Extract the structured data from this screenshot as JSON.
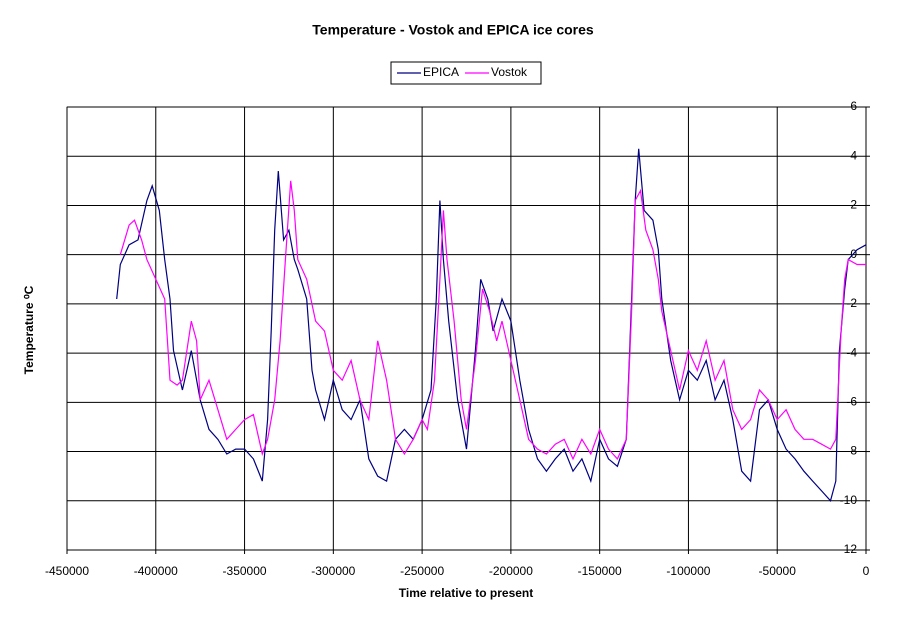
{
  "chart_data": {
    "type": "line",
    "title": "Temperature - Vostok and EPICA ice cores",
    "x_label": "Time relative to present",
    "y_label": "Temperature ⁰C",
    "xlim": [
      -450000,
      0
    ],
    "xticks": [
      -450000,
      -400000,
      -350000,
      -300000,
      -250000,
      -200000,
      -150000,
      -100000,
      -50000,
      0
    ],
    "ylim": [
      -12,
      6
    ],
    "yticks": [
      6,
      4,
      2,
      0,
      -2,
      -4,
      -6,
      -8,
      -10,
      -12
    ],
    "grid": true,
    "legend": "top",
    "series": [
      {
        "name": "EPICA",
        "color": "#000080",
        "x": [
          -422000,
          -420000,
          -415000,
          -410000,
          -405000,
          -402000,
          -398000,
          -395000,
          -392000,
          -390000,
          -385000,
          -380000,
          -375000,
          -370000,
          -365000,
          -360000,
          -355000,
          -350000,
          -345000,
          -340000,
          -337000,
          -335000,
          -333000,
          -331000,
          -328000,
          -325000,
          -322000,
          -320000,
          -315000,
          -312000,
          -310000,
          -305000,
          -300000,
          -295000,
          -290000,
          -285000,
          -280000,
          -275000,
          -270000,
          -265000,
          -260000,
          -255000,
          -250000,
          -245000,
          -242000,
          -240000,
          -238000,
          -235000,
          -230000,
          -225000,
          -220000,
          -217000,
          -213000,
          -210000,
          -205000,
          -200000,
          -195000,
          -190000,
          -185000,
          -180000,
          -175000,
          -170000,
          -165000,
          -160000,
          -155000,
          -150000,
          -145000,
          -140000,
          -135000,
          -132000,
          -130000,
          -128000,
          -125000,
          -120000,
          -117000,
          -115000,
          -110000,
          -105000,
          -100000,
          -95000,
          -90000,
          -85000,
          -80000,
          -75000,
          -70000,
          -65000,
          -60000,
          -55000,
          -50000,
          -45000,
          -40000,
          -35000,
          -30000,
          -25000,
          -20000,
          -17000,
          -15000,
          -12000,
          -10000,
          -5000,
          0
        ],
        "values": [
          -1.8,
          -0.4,
          0.4,
          0.6,
          2.2,
          2.8,
          1.8,
          -0.2,
          -1.8,
          -3.9,
          -5.5,
          -3.9,
          -5.9,
          -7.1,
          -7.5,
          -8.1,
          -7.9,
          -7.9,
          -8.3,
          -9.2,
          -6.7,
          -3.1,
          1.0,
          3.4,
          0.6,
          1.0,
          -0.2,
          -0.6,
          -1.8,
          -4.7,
          -5.5,
          -6.7,
          -5.1,
          -6.3,
          -6.7,
          -5.9,
          -8.3,
          -9.0,
          -9.2,
          -7.5,
          -7.1,
          -7.5,
          -6.7,
          -5.5,
          -1.8,
          2.2,
          -0.2,
          -2.7,
          -5.9,
          -7.9,
          -3.9,
          -1.0,
          -1.8,
          -3.1,
          -1.8,
          -2.7,
          -5.1,
          -7.1,
          -8.3,
          -8.8,
          -8.3,
          -7.9,
          -8.8,
          -8.3,
          -9.2,
          -7.5,
          -8.3,
          -8.6,
          -7.5,
          -1.8,
          2.2,
          4.3,
          1.8,
          1.4,
          0.2,
          -1.8,
          -4.3,
          -5.9,
          -4.7,
          -5.1,
          -4.3,
          -5.9,
          -5.1,
          -6.7,
          -8.8,
          -9.2,
          -6.3,
          -5.9,
          -7.1,
          -7.9,
          -8.3,
          -8.8,
          -9.2,
          -9.6,
          -10.0,
          -9.2,
          -3.9,
          -1.4,
          -0.2,
          0.2,
          0.4
        ]
      },
      {
        "name": "Vostok",
        "color": "#ff00ff",
        "x": [
          -420000,
          -415000,
          -412000,
          -408000,
          -405000,
          -400000,
          -395000,
          -392000,
          -388000,
          -385000,
          -380000,
          -377000,
          -375000,
          -370000,
          -365000,
          -360000,
          -355000,
          -350000,
          -345000,
          -340000,
          -337000,
          -333000,
          -330000,
          -327000,
          -324000,
          -322000,
          -320000,
          -315000,
          -310000,
          -305000,
          -300000,
          -295000,
          -290000,
          -285000,
          -280000,
          -275000,
          -270000,
          -265000,
          -260000,
          -255000,
          -250000,
          -247000,
          -243000,
          -240000,
          -238000,
          -236000,
          -232000,
          -228000,
          -225000,
          -220000,
          -216000,
          -212000,
          -208000,
          -205000,
          -200000,
          -195000,
          -190000,
          -185000,
          -180000,
          -175000,
          -170000,
          -165000,
          -160000,
          -155000,
          -150000,
          -145000,
          -140000,
          -135000,
          -132000,
          -130000,
          -127000,
          -124000,
          -120000,
          -117000,
          -115000,
          -110000,
          -105000,
          -100000,
          -95000,
          -90000,
          -85000,
          -80000,
          -75000,
          -70000,
          -65000,
          -60000,
          -55000,
          -50000,
          -45000,
          -40000,
          -35000,
          -30000,
          -25000,
          -20000,
          -17000,
          -14000,
          -12000,
          -10000,
          -5000,
          0
        ],
        "values": [
          0,
          1.2,
          1.4,
          0.6,
          -0.2,
          -1.0,
          -1.8,
          -5.1,
          -5.3,
          -5.1,
          -2.7,
          -3.5,
          -5.9,
          -5.1,
          -6.3,
          -7.5,
          -7.1,
          -6.7,
          -6.5,
          -8.1,
          -7.5,
          -5.9,
          -3.5,
          -0.2,
          3.0,
          1.8,
          -0.2,
          -1.0,
          -2.7,
          -3.1,
          -4.7,
          -5.1,
          -4.3,
          -5.9,
          -6.7,
          -3.5,
          -5.1,
          -7.5,
          -8.1,
          -7.5,
          -6.7,
          -7.1,
          -5.1,
          -1.0,
          1.8,
          -0.2,
          -2.7,
          -5.9,
          -7.1,
          -4.3,
          -1.4,
          -2.3,
          -3.5,
          -2.7,
          -4.3,
          -5.9,
          -7.5,
          -7.9,
          -8.1,
          -7.7,
          -7.5,
          -8.3,
          -7.5,
          -8.1,
          -7.1,
          -7.9,
          -8.3,
          -7.5,
          -2.3,
          2.2,
          2.6,
          1.0,
          0.2,
          -1.0,
          -2.3,
          -3.9,
          -5.5,
          -3.9,
          -4.7,
          -3.5,
          -5.1,
          -4.3,
          -6.3,
          -7.1,
          -6.7,
          -5.5,
          -5.9,
          -6.7,
          -6.3,
          -7.1,
          -7.5,
          -7.5,
          -7.7,
          -7.9,
          -7.5,
          -3.1,
          -1.0,
          -0.2,
          -0.4,
          -0.4
        ]
      }
    ]
  }
}
